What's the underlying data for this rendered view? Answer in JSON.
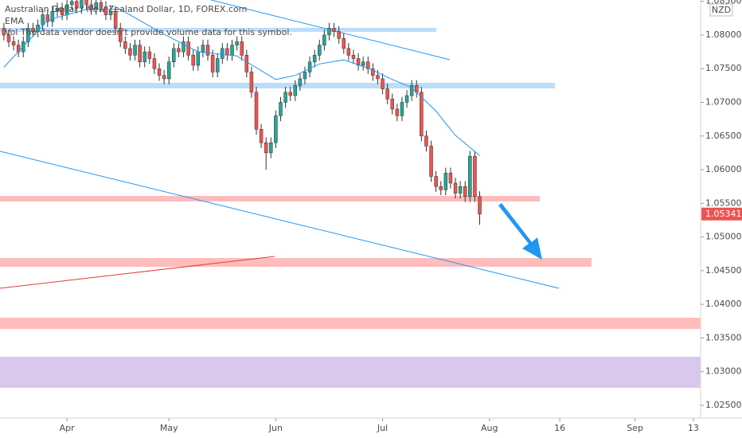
{
  "chart_data": {
    "type": "candlestick",
    "title": "Australian Dollar / New Zealand Dollar, 1D, FOREX.com",
    "indicator": "EMA",
    "note": "Vol  The data vendor doesn't provide volume data for this symbol.",
    "currency": "NZD",
    "last_price": 1.05341,
    "up_color": "#26a69a",
    "down_color": "#ef5350",
    "ylim": [
      1.0231,
      1.0852
    ],
    "yticks": [
      {
        "value": 1.085,
        "label": "1.08500"
      },
      {
        "value": 1.08,
        "label": "1.08000"
      },
      {
        "value": 1.075,
        "label": "1.07500"
      },
      {
        "value": 1.07,
        "label": "1.07000"
      },
      {
        "value": 1.065,
        "label": "1.06500"
      },
      {
        "value": 1.06,
        "label": "1.06000"
      },
      {
        "value": 1.055,
        "label": "1.05500"
      },
      {
        "value": 1.05,
        "label": "1.05000"
      },
      {
        "value": 1.045,
        "label": "1.04500"
      },
      {
        "value": 1.04,
        "label": "1.04000"
      },
      {
        "value": 1.035,
        "label": "1.03500"
      },
      {
        "value": 1.03,
        "label": "1.03000"
      },
      {
        "value": 1.025,
        "label": "1.02500"
      }
    ],
    "xlim": [
      -13.8,
      130.5
    ],
    "xticks": [
      {
        "value": 0,
        "label": "Apr"
      },
      {
        "value": 21,
        "label": "May"
      },
      {
        "value": 43,
        "label": "Jun"
      },
      {
        "value": 65,
        "label": "Jul"
      },
      {
        "value": 87,
        "label": "Aug"
      },
      {
        "value": 101.5,
        "label": "16"
      },
      {
        "value": 117,
        "label": "Sep"
      },
      {
        "value": 129,
        "label": "13"
      }
    ],
    "x": [
      -13,
      -12,
      -11,
      -10,
      -9,
      -8,
      -7,
      -6,
      -5,
      -4,
      -3,
      -2,
      -1,
      0,
      1,
      2,
      3,
      4,
      5,
      6,
      7,
      8,
      9,
      10,
      11,
      12,
      13,
      14,
      15,
      16,
      17,
      18,
      19,
      20,
      21,
      22,
      23,
      24,
      25,
      26,
      27,
      28,
      29,
      30,
      31,
      32,
      33,
      34,
      35,
      36,
      37,
      38,
      39,
      40,
      41,
      42,
      43,
      44,
      45,
      46,
      47,
      48,
      49,
      50,
      51,
      52,
      53,
      54,
      55,
      56,
      57,
      58,
      59,
      60,
      61,
      62,
      63,
      64,
      65,
      66,
      67,
      68,
      69,
      70,
      71,
      72,
      73,
      74,
      75,
      76,
      77,
      78,
      79,
      80,
      81,
      82,
      83,
      84,
      85
    ],
    "open": [
      1.081,
      1.08,
      1.079,
      1.0785,
      1.0775,
      1.079,
      1.081,
      1.0805,
      1.0815,
      1.083,
      1.082,
      1.0835,
      1.084,
      1.083,
      1.0845,
      1.085,
      1.084,
      1.0855,
      1.0845,
      1.0838,
      1.0848,
      1.0842,
      1.083,
      1.0835,
      1.081,
      1.079,
      1.078,
      1.077,
      1.0785,
      1.076,
      1.0775,
      1.0765,
      1.075,
      1.074,
      1.0735,
      1.076,
      1.078,
      1.0775,
      1.079,
      1.077,
      1.0755,
      1.0775,
      1.0785,
      1.077,
      1.0745,
      1.0765,
      1.078,
      1.077,
      1.0785,
      1.079,
      1.077,
      1.0745,
      1.0715,
      1.066,
      1.064,
      1.0625,
      1.064,
      1.068,
      1.07,
      1.0715,
      1.071,
      1.0725,
      1.0735,
      1.0745,
      1.076,
      1.077,
      1.0785,
      1.08,
      1.081,
      1.0805,
      1.0795,
      1.078,
      1.077,
      1.0765,
      1.0755,
      1.076,
      1.075,
      1.074,
      1.0735,
      1.072,
      1.0705,
      1.069,
      1.068,
      1.07,
      1.071,
      1.0725,
      1.0715,
      1.065,
      1.0635,
      1.059,
      1.0575,
      1.057,
      1.0595,
      1.058,
      1.0565,
      1.0575,
      1.056,
      1.062,
      1.056
    ],
    "high": [
      1.0818,
      1.0808,
      1.0798,
      1.0793,
      1.0798,
      1.0818,
      1.0818,
      1.0823,
      1.0838,
      1.0838,
      1.0843,
      1.0848,
      1.0848,
      1.0853,
      1.0858,
      1.0858,
      1.0863,
      1.0863,
      1.0853,
      1.0856,
      1.0856,
      1.085,
      1.0843,
      1.0843,
      1.0818,
      1.0798,
      1.0788,
      1.0793,
      1.0793,
      1.0783,
      1.0783,
      1.0773,
      1.0758,
      1.0748,
      1.0768,
      1.0788,
      1.0788,
      1.0798,
      1.0798,
      1.0778,
      1.0783,
      1.0793,
      1.0793,
      1.0778,
      1.0773,
      1.0788,
      1.0788,
      1.0793,
      1.0798,
      1.0798,
      1.0778,
      1.0753,
      1.0723,
      1.0668,
      1.0648,
      1.0648,
      1.0688,
      1.0708,
      1.0723,
      1.0723,
      1.0733,
      1.0743,
      1.0753,
      1.0768,
      1.0778,
      1.0793,
      1.0808,
      1.0818,
      1.0818,
      1.0813,
      1.0803,
      1.0788,
      1.0778,
      1.0773,
      1.0768,
      1.0768,
      1.0758,
      1.0748,
      1.0743,
      1.0728,
      1.0713,
      1.0698,
      1.0708,
      1.0718,
      1.0733,
      1.0733,
      1.0723,
      1.0658,
      1.0643,
      1.0598,
      1.0583,
      1.0603,
      1.0603,
      1.0588,
      1.0583,
      1.0583,
      1.0628,
      1.0628,
      1.0568
    ],
    "low": [
      1.0792,
      1.0782,
      1.0777,
      1.0767,
      1.0767,
      1.0782,
      1.0797,
      1.0797,
      1.0807,
      1.0812,
      1.0812,
      1.0827,
      1.0822,
      1.0822,
      1.0837,
      1.0832,
      1.0832,
      1.0837,
      1.083,
      1.083,
      1.0834,
      1.0822,
      1.0822,
      1.0802,
      1.0782,
      1.0772,
      1.0762,
      1.0762,
      1.0752,
      1.0752,
      1.0757,
      1.0742,
      1.0732,
      1.0727,
      1.0727,
      1.0752,
      1.0767,
      1.0767,
      1.0762,
      1.0747,
      1.0747,
      1.0767,
      1.0762,
      1.0737,
      1.0737,
      1.0757,
      1.0762,
      1.0762,
      1.0777,
      1.0762,
      1.0737,
      1.0707,
      1.0652,
      1.0632,
      1.06,
      1.0617,
      1.0632,
      1.0672,
      1.0692,
      1.0702,
      1.0702,
      1.0717,
      1.0727,
      1.0737,
      1.0752,
      1.0762,
      1.0777,
      1.0792,
      1.0797,
      1.0787,
      1.0772,
      1.0762,
      1.0757,
      1.0747,
      1.0747,
      1.0742,
      1.0732,
      1.0727,
      1.0712,
      1.0697,
      1.0682,
      1.0672,
      1.0672,
      1.0692,
      1.0702,
      1.0707,
      1.0642,
      1.0627,
      1.0582,
      1.0567,
      1.0562,
      1.0562,
      1.0572,
      1.0557,
      1.0557,
      1.0552,
      1.0552,
      1.0552,
      1.0518
    ],
    "close": [
      1.08,
      1.079,
      1.0785,
      1.0775,
      1.079,
      1.081,
      1.0805,
      1.0815,
      1.083,
      1.082,
      1.0835,
      1.084,
      1.083,
      1.0845,
      1.085,
      1.084,
      1.0855,
      1.0845,
      1.0838,
      1.0848,
      1.0842,
      1.083,
      1.0835,
      1.081,
      1.079,
      1.078,
      1.077,
      1.0785,
      1.076,
      1.0775,
      1.0765,
      1.075,
      1.074,
      1.0735,
      1.076,
      1.078,
      1.0775,
      1.079,
      1.077,
      1.0755,
      1.0775,
      1.0785,
      1.077,
      1.0745,
      1.0765,
      1.078,
      1.077,
      1.0785,
      1.079,
      1.077,
      1.0745,
      1.0715,
      1.066,
      1.064,
      1.0625,
      1.064,
      1.068,
      1.07,
      1.0715,
      1.071,
      1.0725,
      1.0735,
      1.0745,
      1.076,
      1.077,
      1.0785,
      1.08,
      1.081,
      1.0805,
      1.0795,
      1.078,
      1.077,
      1.0765,
      1.0755,
      1.076,
      1.075,
      1.074,
      1.0735,
      1.072,
      1.0705,
      1.069,
      1.068,
      1.07,
      1.071,
      1.0725,
      1.0715,
      1.065,
      1.0635,
      1.059,
      1.0575,
      1.057,
      1.0595,
      1.058,
      1.0565,
      1.0575,
      1.056,
      1.062,
      1.056,
      1.0534
    ],
    "ma": {
      "color": "#2196f3",
      "x": [
        -13,
        -4,
        4,
        11,
        19,
        27,
        35,
        43,
        47,
        52,
        57,
        62,
        67,
        71,
        76,
        80,
        85
      ],
      "values": [
        1.0752,
        1.0822,
        1.0838,
        1.0838,
        1.0805,
        1.0775,
        1.0769,
        1.0734,
        1.074,
        1.0757,
        1.0763,
        1.0751,
        1.0734,
        1.0722,
        1.0687,
        1.0651,
        1.0621
      ]
    }
  }
}
